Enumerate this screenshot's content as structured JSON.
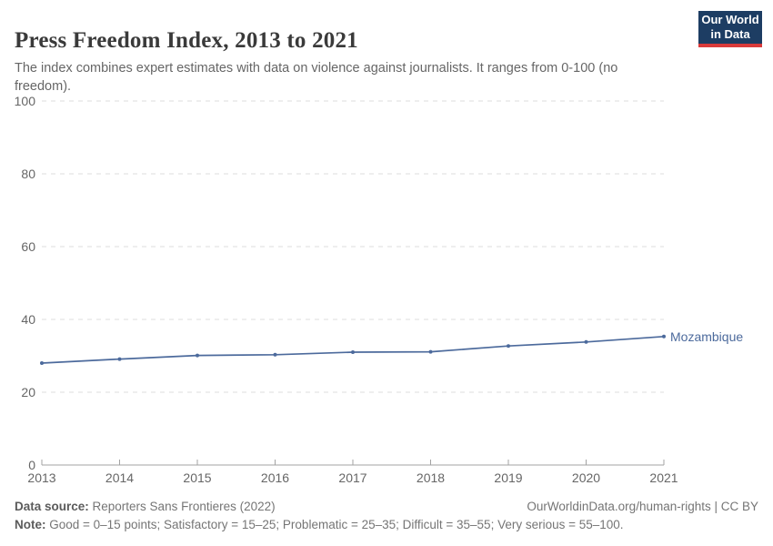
{
  "header": {
    "title": "Press Freedom Index, 2013 to 2021",
    "subtitle": "The index combines expert estimates with data on violence against journalists. It ranges from 0-100 (no freedom).",
    "logo": {
      "line1": "Our World",
      "line2": "in Data",
      "bg_color": "#1d3d63",
      "accent_color": "#d93a3a"
    }
  },
  "chart_data": {
    "type": "line",
    "title": "Press Freedom Index, 2013 to 2021",
    "xlabel": "",
    "ylabel": "",
    "x": [
      2013,
      2014,
      2015,
      2016,
      2017,
      2018,
      2019,
      2020,
      2021
    ],
    "series": [
      {
        "name": "Mozambique",
        "values": [
          28.0,
          29.1,
          30.1,
          30.3,
          31.0,
          31.1,
          32.7,
          33.8,
          35.3
        ],
        "color": "#4c6a9c"
      }
    ],
    "ylim": [
      0,
      100
    ],
    "yticks": [
      0,
      20,
      40,
      60,
      80,
      100
    ],
    "xticks": [
      2013,
      2014,
      2015,
      2016,
      2017,
      2018,
      2019,
      2020,
      2021
    ],
    "grid": "dashed-horizontal",
    "gridline_color": "#dcdcdc",
    "axis_color": "#a3a3a3",
    "tick_label_color": "#666666",
    "legend_position": "end-of-line"
  },
  "footer": {
    "datasource_label": "Data source:",
    "datasource_value": " Reporters Sans Frontieres (2022)",
    "link": "OurWorldinData.org/human-rights | CC BY",
    "note_label": "Note:",
    "note_value": " Good = 0–15 points; Satisfactory = 15–25; Problematic = 25–35; Difficult = 35–55; Very serious = 55–100."
  }
}
